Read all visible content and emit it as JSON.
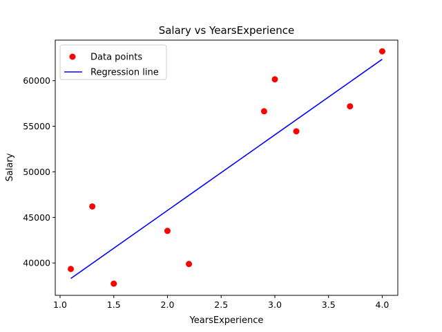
{
  "chart_data": {
    "type": "scatter",
    "title": "Salary vs YearsExperience",
    "xlabel": "YearsExperience",
    "ylabel": "Salary",
    "xlim": [
      0.955,
      4.145
    ],
    "ylim": [
      36450,
      64450
    ],
    "xticks": [
      1.0,
      1.5,
      2.0,
      2.5,
      3.0,
      3.5,
      4.0
    ],
    "xtick_labels": [
      "1.0",
      "1.5",
      "2.0",
      "2.5",
      "3.0",
      "3.5",
      "4.0"
    ],
    "yticks": [
      40000,
      45000,
      50000,
      55000,
      60000
    ],
    "ytick_labels": [
      "40000",
      "45000",
      "50000",
      "55000",
      "60000"
    ],
    "grid": false,
    "legend_position": "top-left",
    "series": [
      {
        "name": "Data points",
        "kind": "scatter",
        "color": "#ff0000",
        "x": [
          1.1,
          1.3,
          1.5,
          2.0,
          2.2,
          2.9,
          3.0,
          3.2,
          3.7,
          4.0
        ],
        "y": [
          39343,
          46205,
          37731,
          43525,
          39891,
          56642,
          60150,
          54445,
          57189,
          63218
        ]
      },
      {
        "name": "Regression line",
        "kind": "line",
        "color": "#0000ff",
        "x": [
          1.1,
          4.0
        ],
        "y": [
          38300,
          62350
        ]
      }
    ]
  }
}
